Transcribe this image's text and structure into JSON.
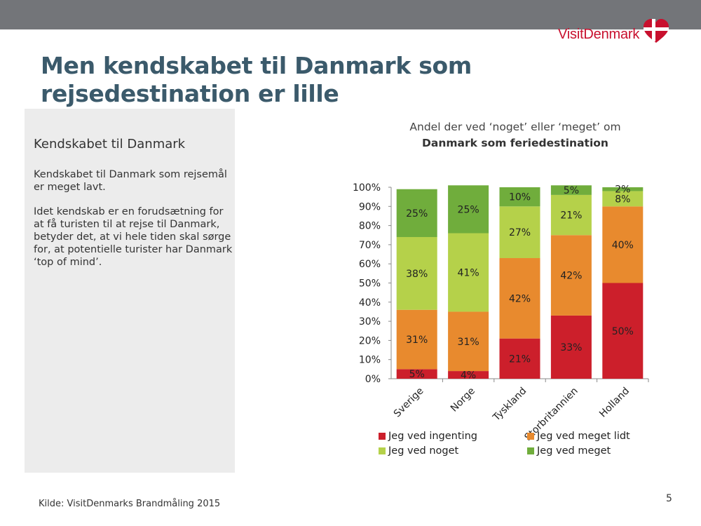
{
  "logo": {
    "text": "VisitDenmark"
  },
  "title": "Men kendskabet til Danmark som rejsedestination er lille",
  "panel": {
    "heading": "Kendskabet til Danmark",
    "paragraph1": "Kendskabet til Danmark som rejsemål er meget lavt.",
    "paragraph2": "Idet kendskab er en forudsætning for at få turisten til at rejse til Danmark, betyder det, at vi hele tiden skal sørge for, at potentielle turister har Danmark ‘top of mind’."
  },
  "source": "Kilde: VisitDenmarks Brandmåling 2015",
  "page_number": "5",
  "colors": {
    "title": "#3b5a6b",
    "brand_red": "#c8102e",
    "topbar": "#737579",
    "panel_bg": "#ececec"
  },
  "chart_data": {
    "type": "bar",
    "stacked": true,
    "title_line1": "Andel der ved ‘noget’ eller ‘meget’ om",
    "title_line2": "Danmark som feriedestination",
    "categories": [
      "Sverige",
      "Norge",
      "Tyskland",
      "Storbritannien",
      "Holland"
    ],
    "ylim": [
      0,
      100
    ],
    "yticks": [
      "0%",
      "10%",
      "20%",
      "30%",
      "40%",
      "50%",
      "60%",
      "70%",
      "80%",
      "90%",
      "100%"
    ],
    "series": [
      {
        "name": "Jeg ved ingenting",
        "color": "#cc1f2b",
        "values": [
          5,
          4,
          21,
          33,
          50
        ]
      },
      {
        "name": "Jeg ved meget lidt",
        "color": "#e88a2e",
        "values": [
          31,
          31,
          42,
          42,
          40
        ]
      },
      {
        "name": "Jeg ved noget",
        "color": "#b5d14a",
        "values": [
          38,
          41,
          27,
          21,
          8
        ]
      },
      {
        "name": "Jeg ved meget",
        "color": "#70ad3c",
        "values": [
          25,
          25,
          10,
          5,
          2
        ]
      }
    ],
    "legend": "bottom"
  }
}
